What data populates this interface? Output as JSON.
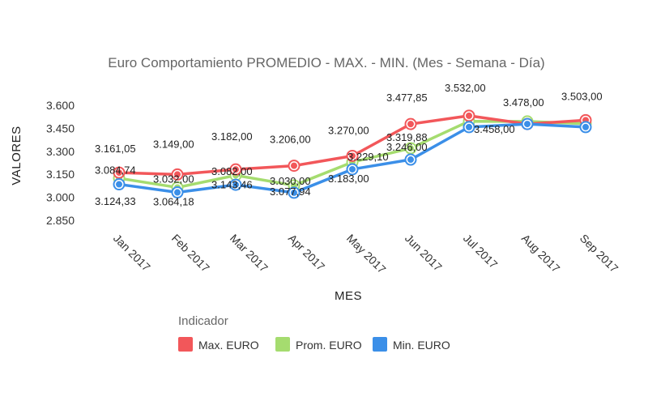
{
  "chart_data": {
    "type": "line",
    "title": "Euro Comportamiento PROMEDIO - MAX. - MIN. (Mes - Semana - Día)",
    "xlabel": "MES",
    "ylabel": "VALORES",
    "categories": [
      "Jan 2017",
      "Feb 2017",
      "Mar 2017",
      "Apr 2017",
      "May 2017",
      "Jun 2017",
      "Jul 2017",
      "Aug 2017",
      "Sep 2017"
    ],
    "ylim": [
      2850,
      3600
    ],
    "yticks": [
      2850,
      3000,
      3150,
      3300,
      3450,
      3600
    ],
    "ytick_labels": [
      "2.850",
      "3.000",
      "3.150",
      "3.300",
      "3.450",
      "3.600"
    ],
    "grid": false,
    "legend_title": "Indicador",
    "legend_position": "bottom",
    "series": [
      {
        "name": "Max. EURO",
        "color": "#f2575a",
        "values": [
          3161.05,
          3149.0,
          3182.0,
          3206.0,
          3270.0,
          3477.85,
          3532.0,
          3478.0,
          3503.0
        ],
        "labels": [
          "3.161,05",
          "3.149,00",
          "3.182,00",
          "3.206,00",
          "3.270,00",
          "3.477,85",
          "3.532,00",
          "3.478,00",
          "3.503,00"
        ]
      },
      {
        "name": "Prom. EURO",
        "color": "#a5dc6f",
        "values": [
          3124.33,
          3064.18,
          3143.46,
          3077.94,
          3229.1,
          3319.88,
          3496.0,
          3495.0,
          3480.0
        ],
        "labels": [
          "3.124,33",
          "3.064,18",
          "3.143,46",
          "3.077,94",
          "3.229,10",
          "3.319,88",
          "",
          "",
          ""
        ]
      },
      {
        "name": "Min. EURO",
        "color": "#3b8fe8",
        "values": [
          3084.74,
          3032.0,
          3082.0,
          3030.0,
          3183.0,
          3246.0,
          3458.0,
          3478.0,
          3458.0
        ],
        "labels": [
          "3.084,74",
          "3.032,00",
          "3.082,00",
          "3.030,00",
          "3.183,00",
          "3.246,00",
          "3.458,00",
          "",
          ""
        ]
      }
    ]
  }
}
